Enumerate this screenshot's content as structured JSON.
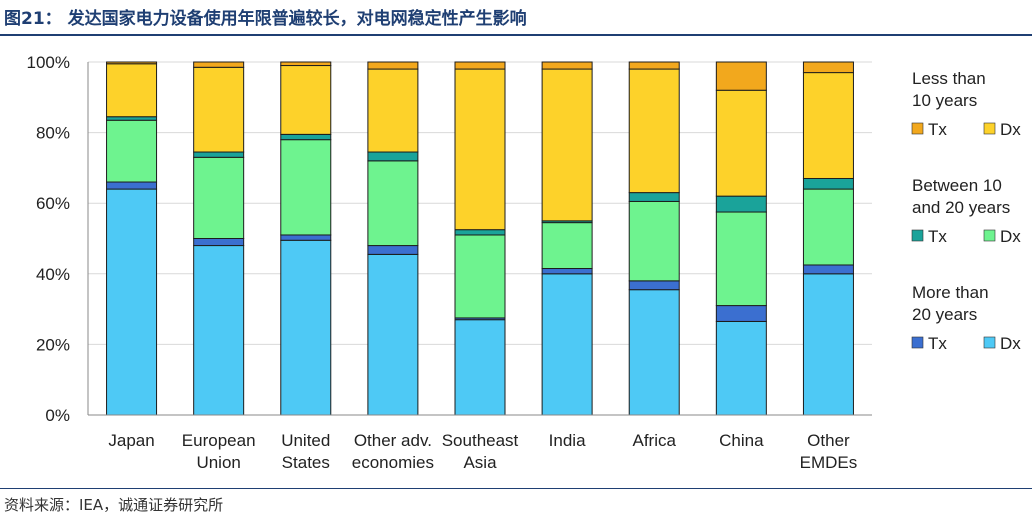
{
  "title": "图21：  发达国家电力设备使用年限普遍较长，对电网稳定性产生影响",
  "source": "资料来源：IEA，诚通证券研究所",
  "chart_data": {
    "type": "bar",
    "stacked": true,
    "categories": [
      "Japan",
      "European Union",
      "United States",
      "Other adv. economies",
      "Southeast Asia",
      "India",
      "Africa",
      "China",
      "Other EMDEs"
    ],
    "category_lines": [
      [
        "Japan"
      ],
      [
        "European",
        "Union"
      ],
      [
        "United",
        "States"
      ],
      [
        "Other adv.",
        "economies"
      ],
      [
        "Southeast",
        "Asia"
      ],
      [
        "India"
      ],
      [
        "Africa"
      ],
      [
        "China"
      ],
      [
        "Other",
        "EMDEs"
      ]
    ],
    "ylim": [
      0,
      100
    ],
    "yticks": [
      0,
      20,
      40,
      60,
      80,
      100
    ],
    "ytick_labels": [
      "0%",
      "20%",
      "40%",
      "60%",
      "80%",
      "100%"
    ],
    "grid": true,
    "legend_position": "right",
    "series": [
      {
        "key": "gt20_dx",
        "group": "More than 20 years",
        "short": "Dx",
        "color": "#4ec9f5",
        "values": [
          64,
          48,
          49.5,
          45.5,
          27,
          40,
          35.5,
          26.5,
          40
        ]
      },
      {
        "key": "gt20_tx",
        "group": "More than 20 years",
        "short": "Tx",
        "color": "#3b6fd0",
        "values": [
          2,
          2,
          1.5,
          2.5,
          0.5,
          1.5,
          2.5,
          4.5,
          2.5
        ]
      },
      {
        "key": "b1020_dx",
        "group": "Between 10 and 20 years",
        "short": "Dx",
        "color": "#6ef38f",
        "values": [
          17.5,
          23,
          27,
          24,
          23.5,
          13,
          22.5,
          26.5,
          21.5
        ]
      },
      {
        "key": "b1020_tx",
        "group": "Between 10 and 20 years",
        "short": "Tx",
        "color": "#1aa39a",
        "values": [
          1,
          1.5,
          1.5,
          2.5,
          1.5,
          0.5,
          2.5,
          4.5,
          3
        ]
      },
      {
        "key": "lt10_dx",
        "group": "Less than 10 years",
        "short": "Dx",
        "color": "#fdd22a",
        "values": [
          15,
          24,
          19.5,
          23.5,
          45.5,
          43,
          35,
          30,
          30
        ]
      },
      {
        "key": "lt10_tx",
        "group": "Less than 10 years",
        "short": "Tx",
        "color": "#f2a81d",
        "values": [
          0.5,
          1.5,
          1,
          2,
          2,
          2,
          2,
          8,
          3
        ]
      }
    ],
    "legend": [
      {
        "title_lines": [
          "Less than",
          "10 years"
        ],
        "items": [
          {
            "label": "Tx",
            "series": "lt10_tx"
          },
          {
            "label": "Dx",
            "series": "lt10_dx"
          }
        ]
      },
      {
        "title_lines": [
          "Between 10",
          "and 20 years"
        ],
        "items": [
          {
            "label": "Tx",
            "series": "b1020_tx"
          },
          {
            "label": "Dx",
            "series": "b1020_dx"
          }
        ]
      },
      {
        "title_lines": [
          "More than",
          "20 years"
        ],
        "items": [
          {
            "label": "Tx",
            "series": "gt20_tx"
          },
          {
            "label": "Dx",
            "series": "gt20_dx"
          }
        ]
      }
    ]
  }
}
